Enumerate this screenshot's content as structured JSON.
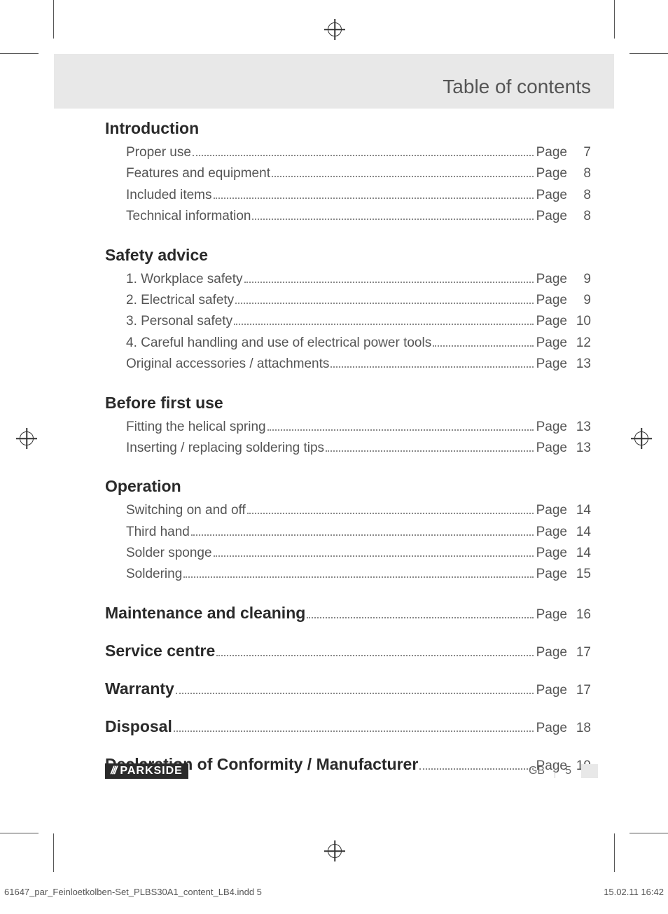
{
  "header": {
    "title": "Table of contents"
  },
  "page_word": "Page",
  "sections": [
    {
      "heading": "Introduction",
      "entries": [
        {
          "label": "Proper use",
          "page": 7
        },
        {
          "label": "Features and equipment",
          "page": 8
        },
        {
          "label": "Included items",
          "page": 8
        },
        {
          "label": "Technical information",
          "page": 8
        }
      ]
    },
    {
      "heading": "Safety advice",
      "entries": [
        {
          "label": "1. Workplace safety",
          "page": 9
        },
        {
          "label": "2. Electrical safety",
          "page": 9
        },
        {
          "label": "3. Personal safety",
          "page": 10
        },
        {
          "label": "4. Careful handling and use of electrical power tools",
          "page": 12
        },
        {
          "label": "Original accessories / attachments",
          "page": 13
        }
      ]
    },
    {
      "heading": "Before first use",
      "entries": [
        {
          "label": "Fitting the helical spring",
          "page": 13
        },
        {
          "label": "Inserting / replacing soldering tips",
          "page": 13
        }
      ]
    },
    {
      "heading": "Operation",
      "entries": [
        {
          "label": "Switching on and off",
          "page": 14
        },
        {
          "label": "Third hand",
          "page": 14
        },
        {
          "label": "Solder sponge",
          "page": 14
        },
        {
          "label": "Soldering",
          "page": 15
        }
      ]
    }
  ],
  "inline_sections": [
    {
      "heading": "Maintenance and cleaning",
      "page": 16
    },
    {
      "heading": "Service centre",
      "page": 17
    },
    {
      "heading": "Warranty",
      "page": 17
    },
    {
      "heading": "Disposal",
      "page": 18
    },
    {
      "heading": "Declaration of Conformity / Manufacturer",
      "page": 19
    }
  ],
  "footer": {
    "brand": "PARKSIDE",
    "country": "GB",
    "page_number": 5
  },
  "imprint": {
    "file": "61647_par_Feinloetkolben-Set_PLBS30A1_content_LB4.indd   5",
    "timestamp": "15.02.11   16:42"
  }
}
